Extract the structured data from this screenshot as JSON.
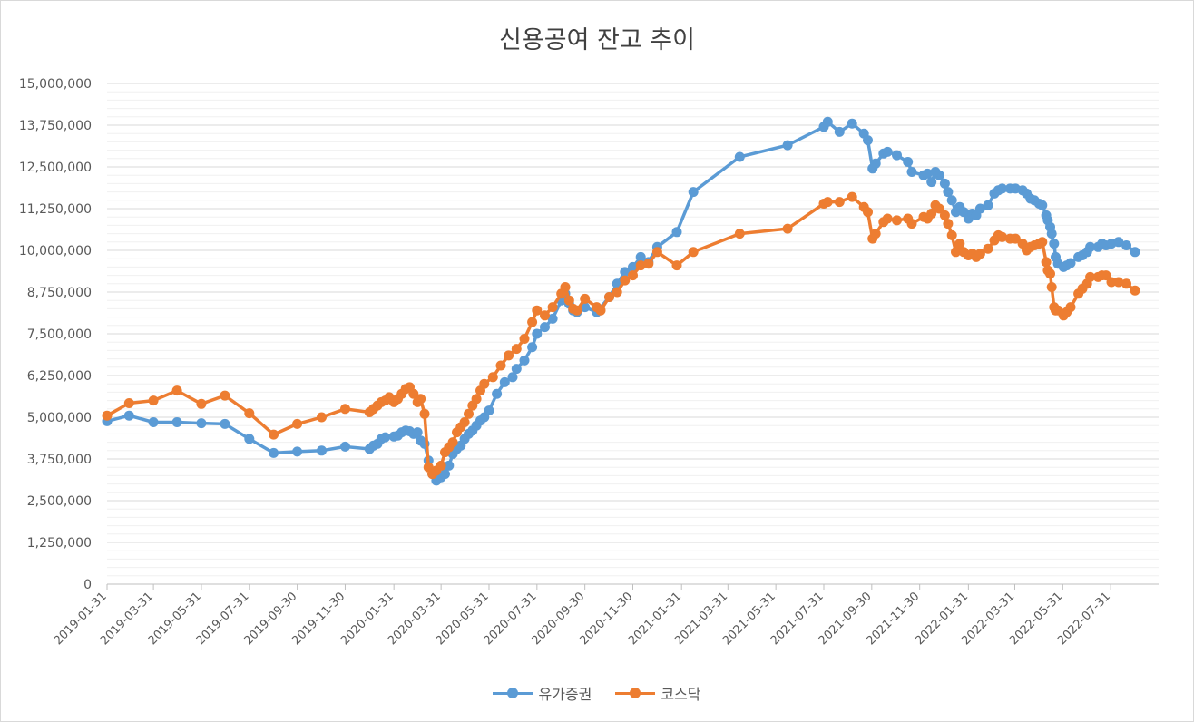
{
  "chart_data": {
    "type": "line",
    "title": "신용공여 잔고 추이",
    "ylim": [
      0,
      15000000
    ],
    "y_ticks": [
      0,
      1250000,
      2500000,
      3750000,
      5000000,
      6250000,
      7500000,
      8750000,
      10000000,
      11250000,
      12500000,
      13750000,
      15000000
    ],
    "y_tick_labels": [
      "0",
      "1,250,000",
      "2,500,000",
      "3,750,000",
      "5,000,000",
      "6,250,000",
      "7,500,000",
      "8,750,000",
      "10,000,000",
      "11,250,000",
      "12,500,000",
      "13,750,000",
      "15,000,000"
    ],
    "x_range": [
      "2019-01-31",
      "2022-09-30"
    ],
    "x_tick_labels": [
      "2019-01-31",
      "2019-03-31",
      "2019-05-31",
      "2019-07-31",
      "2019-09-30",
      "2019-11-30",
      "2020-01-31",
      "2020-03-31",
      "2020-05-31",
      "2020-07-31",
      "2020-09-30",
      "2020-11-30",
      "2021-01-31",
      "2021-03-31",
      "2021-05-31",
      "2021-07-31",
      "2021-09-30",
      "2021-11-30",
      "2022-01-31",
      "2022-03-31",
      "2022-05-31",
      "2022-07-31"
    ],
    "grid": "horizontal",
    "legend_position": "bottom",
    "series": [
      {
        "name": "유가증권",
        "color": "#5B9BD5",
        "points": [
          [
            "2019-01-31",
            4880000
          ],
          [
            "2019-02-28",
            5050000
          ],
          [
            "2019-03-31",
            4850000
          ],
          [
            "2019-04-30",
            4850000
          ],
          [
            "2019-05-31",
            4820000
          ],
          [
            "2019-06-30",
            4800000
          ],
          [
            "2019-07-31",
            4350000
          ],
          [
            "2019-08-31",
            3930000
          ],
          [
            "2019-09-30",
            3970000
          ],
          [
            "2019-10-31",
            4000000
          ],
          [
            "2019-11-30",
            4120000
          ],
          [
            "2019-12-31",
            4050000
          ],
          [
            "2020-01-05",
            4150000
          ],
          [
            "2020-01-10",
            4200000
          ],
          [
            "2020-01-15",
            4350000
          ],
          [
            "2020-01-20",
            4400000
          ],
          [
            "2020-01-31",
            4420000
          ],
          [
            "2020-02-05",
            4450000
          ],
          [
            "2020-02-10",
            4550000
          ],
          [
            "2020-02-15",
            4600000
          ],
          [
            "2020-02-20",
            4580000
          ],
          [
            "2020-02-25",
            4500000
          ],
          [
            "2020-03-01",
            4550000
          ],
          [
            "2020-03-05",
            4300000
          ],
          [
            "2020-03-10",
            4200000
          ],
          [
            "2020-03-15",
            3700000
          ],
          [
            "2020-03-20",
            3300000
          ],
          [
            "2020-03-25",
            3100000
          ],
          [
            "2020-03-31",
            3200000
          ],
          [
            "2020-04-05",
            3300000
          ],
          [
            "2020-04-10",
            3550000
          ],
          [
            "2020-04-15",
            3900000
          ],
          [
            "2020-04-20",
            4050000
          ],
          [
            "2020-04-25",
            4150000
          ],
          [
            "2020-04-30",
            4350000
          ],
          [
            "2020-05-05",
            4500000
          ],
          [
            "2020-05-10",
            4600000
          ],
          [
            "2020-05-15",
            4750000
          ],
          [
            "2020-05-20",
            4900000
          ],
          [
            "2020-05-25",
            5000000
          ],
          [
            "2020-05-31",
            5200000
          ],
          [
            "2020-06-10",
            5700000
          ],
          [
            "2020-06-20",
            6050000
          ],
          [
            "2020-06-30",
            6200000
          ],
          [
            "2020-07-05",
            6450000
          ],
          [
            "2020-07-15",
            6700000
          ],
          [
            "2020-07-25",
            7100000
          ],
          [
            "2020-07-31",
            7500000
          ],
          [
            "2020-08-10",
            7700000
          ],
          [
            "2020-08-20",
            7950000
          ],
          [
            "2020-08-31",
            8500000
          ],
          [
            "2020-09-05",
            8700000
          ],
          [
            "2020-09-10",
            8400000
          ],
          [
            "2020-09-15",
            8200000
          ],
          [
            "2020-09-20",
            8150000
          ],
          [
            "2020-09-30",
            8300000
          ],
          [
            "2020-10-15",
            8150000
          ],
          [
            "2020-10-31",
            8600000
          ],
          [
            "2020-11-10",
            9000000
          ],
          [
            "2020-11-20",
            9350000
          ],
          [
            "2020-11-30",
            9500000
          ],
          [
            "2020-12-10",
            9800000
          ],
          [
            "2020-12-20",
            9650000
          ],
          [
            "2020-12-31",
            10100000
          ],
          [
            "2021-01-25",
            10550000
          ],
          [
            "2021-02-15",
            11750000
          ],
          [
            "2021-04-15",
            12800000
          ],
          [
            "2021-06-15",
            13150000
          ],
          [
            "2021-07-31",
            13700000
          ],
          [
            "2021-08-05",
            13850000
          ],
          [
            "2021-08-20",
            13550000
          ],
          [
            "2021-09-05",
            13800000
          ],
          [
            "2021-09-20",
            13500000
          ],
          [
            "2021-09-25",
            13300000
          ],
          [
            "2021-10-01",
            12450000
          ],
          [
            "2021-10-05",
            12600000
          ],
          [
            "2021-10-15",
            12900000
          ],
          [
            "2021-10-20",
            12950000
          ],
          [
            "2021-11-01",
            12850000
          ],
          [
            "2021-11-15",
            12650000
          ],
          [
            "2021-11-20",
            12350000
          ],
          [
            "2021-12-05",
            12250000
          ],
          [
            "2021-12-10",
            12300000
          ],
          [
            "2021-12-15",
            12050000
          ],
          [
            "2021-12-20",
            12350000
          ],
          [
            "2021-12-25",
            12250000
          ],
          [
            "2022-01-01",
            12000000
          ],
          [
            "2022-01-05",
            11750000
          ],
          [
            "2022-01-10",
            11500000
          ],
          [
            "2022-01-15",
            11150000
          ],
          [
            "2022-01-20",
            11300000
          ],
          [
            "2022-01-25",
            11150000
          ],
          [
            "2022-01-31",
            10950000
          ],
          [
            "2022-02-05",
            11100000
          ],
          [
            "2022-02-10",
            11050000
          ],
          [
            "2022-02-15",
            11250000
          ],
          [
            "2022-02-25",
            11350000
          ],
          [
            "2022-03-05",
            11700000
          ],
          [
            "2022-03-10",
            11800000
          ],
          [
            "2022-03-15",
            11850000
          ],
          [
            "2022-03-25",
            11850000
          ],
          [
            "2022-04-01",
            11850000
          ],
          [
            "2022-04-10",
            11800000
          ],
          [
            "2022-04-15",
            11700000
          ],
          [
            "2022-04-20",
            11550000
          ],
          [
            "2022-04-25",
            11500000
          ],
          [
            "2022-05-01",
            11400000
          ],
          [
            "2022-05-05",
            11350000
          ],
          [
            "2022-05-10",
            11050000
          ],
          [
            "2022-05-12",
            10900000
          ],
          [
            "2022-05-15",
            10700000
          ],
          [
            "2022-05-17",
            10500000
          ],
          [
            "2022-05-20",
            10200000
          ],
          [
            "2022-05-22",
            9800000
          ],
          [
            "2022-05-25",
            9600000
          ],
          [
            "2022-06-01",
            9500000
          ],
          [
            "2022-06-05",
            9550000
          ],
          [
            "2022-06-10",
            9620000
          ],
          [
            "2022-06-20",
            9800000
          ],
          [
            "2022-06-25",
            9850000
          ],
          [
            "2022-07-01",
            9950000
          ],
          [
            "2022-07-05",
            10100000
          ],
          [
            "2022-07-15",
            10100000
          ],
          [
            "2022-07-20",
            10200000
          ],
          [
            "2022-07-25",
            10150000
          ],
          [
            "2022-08-01",
            10200000
          ],
          [
            "2022-08-10",
            10250000
          ],
          [
            "2022-08-20",
            10150000
          ],
          [
            "2022-08-31",
            9950000
          ]
        ]
      },
      {
        "name": "코스닥",
        "color": "#ED7D31",
        "points": [
          [
            "2019-01-31",
            5050000
          ],
          [
            "2019-02-28",
            5420000
          ],
          [
            "2019-03-31",
            5500000
          ],
          [
            "2019-04-30",
            5800000
          ],
          [
            "2019-05-31",
            5400000
          ],
          [
            "2019-06-30",
            5650000
          ],
          [
            "2019-07-31",
            5120000
          ],
          [
            "2019-08-31",
            4480000
          ],
          [
            "2019-09-30",
            4800000
          ],
          [
            "2019-10-31",
            5000000
          ],
          [
            "2019-11-30",
            5250000
          ],
          [
            "2019-12-31",
            5150000
          ],
          [
            "2020-01-05",
            5250000
          ],
          [
            "2020-01-10",
            5350000
          ],
          [
            "2020-01-15",
            5450000
          ],
          [
            "2020-01-20",
            5500000
          ],
          [
            "2020-01-25",
            5600000
          ],
          [
            "2020-01-31",
            5450000
          ],
          [
            "2020-02-05",
            5550000
          ],
          [
            "2020-02-10",
            5700000
          ],
          [
            "2020-02-15",
            5850000
          ],
          [
            "2020-02-20",
            5900000
          ],
          [
            "2020-02-25",
            5700000
          ],
          [
            "2020-03-01",
            5450000
          ],
          [
            "2020-03-05",
            5550000
          ],
          [
            "2020-03-10",
            5100000
          ],
          [
            "2020-03-15",
            3500000
          ],
          [
            "2020-03-20",
            3300000
          ],
          [
            "2020-03-25",
            3400000
          ],
          [
            "2020-03-31",
            3550000
          ],
          [
            "2020-04-05",
            3950000
          ],
          [
            "2020-04-10",
            4100000
          ],
          [
            "2020-04-15",
            4250000
          ],
          [
            "2020-04-20",
            4550000
          ],
          [
            "2020-04-25",
            4700000
          ],
          [
            "2020-04-30",
            4850000
          ],
          [
            "2020-05-05",
            5100000
          ],
          [
            "2020-05-10",
            5350000
          ],
          [
            "2020-05-15",
            5550000
          ],
          [
            "2020-05-20",
            5800000
          ],
          [
            "2020-05-25",
            6000000
          ],
          [
            "2020-06-05",
            6200000
          ],
          [
            "2020-06-15",
            6550000
          ],
          [
            "2020-06-25",
            6850000
          ],
          [
            "2020-07-05",
            7050000
          ],
          [
            "2020-07-15",
            7350000
          ],
          [
            "2020-07-25",
            7850000
          ],
          [
            "2020-07-31",
            8200000
          ],
          [
            "2020-08-10",
            8050000
          ],
          [
            "2020-08-20",
            8300000
          ],
          [
            "2020-08-31",
            8700000
          ],
          [
            "2020-09-05",
            8900000
          ],
          [
            "2020-09-10",
            8500000
          ],
          [
            "2020-09-15",
            8250000
          ],
          [
            "2020-09-20",
            8200000
          ],
          [
            "2020-09-30",
            8550000
          ],
          [
            "2020-10-15",
            8300000
          ],
          [
            "2020-10-20",
            8200000
          ],
          [
            "2020-10-31",
            8600000
          ],
          [
            "2020-11-10",
            8750000
          ],
          [
            "2020-11-20",
            9100000
          ],
          [
            "2020-11-30",
            9250000
          ],
          [
            "2020-12-10",
            9550000
          ],
          [
            "2020-12-20",
            9600000
          ],
          [
            "2020-12-31",
            9950000
          ],
          [
            "2021-01-25",
            9550000
          ],
          [
            "2021-02-15",
            9950000
          ],
          [
            "2021-04-15",
            10500000
          ],
          [
            "2021-06-15",
            10650000
          ],
          [
            "2021-07-31",
            11400000
          ],
          [
            "2021-08-05",
            11450000
          ],
          [
            "2021-08-20",
            11450000
          ],
          [
            "2021-09-05",
            11600000
          ],
          [
            "2021-09-20",
            11300000
          ],
          [
            "2021-09-25",
            11150000
          ],
          [
            "2021-10-01",
            10350000
          ],
          [
            "2021-10-05",
            10500000
          ],
          [
            "2021-10-15",
            10850000
          ],
          [
            "2021-10-20",
            10950000
          ],
          [
            "2021-11-01",
            10900000
          ],
          [
            "2021-11-15",
            10950000
          ],
          [
            "2021-11-20",
            10800000
          ],
          [
            "2021-12-05",
            11000000
          ],
          [
            "2021-12-10",
            10950000
          ],
          [
            "2021-12-15",
            11100000
          ],
          [
            "2021-12-20",
            11350000
          ],
          [
            "2021-12-25",
            11250000
          ],
          [
            "2022-01-01",
            11050000
          ],
          [
            "2022-01-05",
            10800000
          ],
          [
            "2022-01-10",
            10450000
          ],
          [
            "2022-01-15",
            9950000
          ],
          [
            "2022-01-20",
            10200000
          ],
          [
            "2022-01-25",
            9950000
          ],
          [
            "2022-01-31",
            9850000
          ],
          [
            "2022-02-05",
            9900000
          ],
          [
            "2022-02-10",
            9800000
          ],
          [
            "2022-02-15",
            9900000
          ],
          [
            "2022-02-25",
            10050000
          ],
          [
            "2022-03-05",
            10300000
          ],
          [
            "2022-03-10",
            10450000
          ],
          [
            "2022-03-15",
            10400000
          ],
          [
            "2022-03-25",
            10350000
          ],
          [
            "2022-04-01",
            10350000
          ],
          [
            "2022-04-10",
            10200000
          ],
          [
            "2022-04-15",
            10000000
          ],
          [
            "2022-04-20",
            10100000
          ],
          [
            "2022-04-25",
            10150000
          ],
          [
            "2022-05-01",
            10200000
          ],
          [
            "2022-05-05",
            10250000
          ],
          [
            "2022-05-10",
            9650000
          ],
          [
            "2022-05-12",
            9400000
          ],
          [
            "2022-05-15",
            9300000
          ],
          [
            "2022-05-17",
            8900000
          ],
          [
            "2022-05-20",
            8300000
          ],
          [
            "2022-05-22",
            8200000
          ],
          [
            "2022-05-25",
            8200000
          ],
          [
            "2022-06-01",
            8050000
          ],
          [
            "2022-06-05",
            8150000
          ],
          [
            "2022-06-10",
            8300000
          ],
          [
            "2022-06-20",
            8700000
          ],
          [
            "2022-06-25",
            8850000
          ],
          [
            "2022-07-01",
            9000000
          ],
          [
            "2022-07-05",
            9200000
          ],
          [
            "2022-07-15",
            9200000
          ],
          [
            "2022-07-20",
            9250000
          ],
          [
            "2022-07-25",
            9250000
          ],
          [
            "2022-08-01",
            9050000
          ],
          [
            "2022-08-10",
            9050000
          ],
          [
            "2022-08-20",
            9000000
          ],
          [
            "2022-08-31",
            8800000
          ]
        ]
      }
    ]
  }
}
